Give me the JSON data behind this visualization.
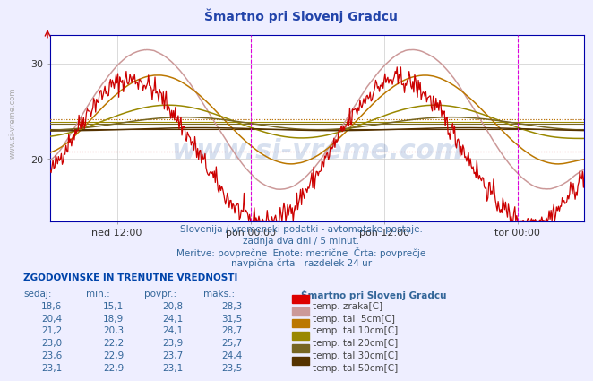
{
  "title": "Šmartno pri Slovenj Gradcu",
  "title_color": "#2244aa",
  "bg_color": "#eeeeff",
  "plot_bg_color": "#ffffff",
  "subtitle_lines": [
    "Slovenija / vremenski podatki - avtomatske postaje.",
    "zadnja dva dni / 5 minut.",
    "Meritve: povprečne  Enote: metrične  Črta: povprečje",
    "navpična črta - razdelek 24 ur"
  ],
  "xtick_labels": [
    "ned 12:00",
    "pon 00:00",
    "pon 12:00",
    "tor 00:00"
  ],
  "xtick_pos": [
    0.125,
    0.375,
    0.625,
    0.875
  ],
  "yticks": [
    20,
    30
  ],
  "ylim_min": 13.5,
  "ylim_max": 33.0,
  "grid_color": "#cccccc",
  "vline_color": "#dd00dd",
  "vline_positions": [
    0.375,
    0.875
  ],
  "series_colors": {
    "temp_zraka": "#cc0000",
    "temp_tal_5cm": "#cc9999",
    "temp_tal_10cm": "#bb7700",
    "temp_tal_20cm": "#998800",
    "temp_tal_30cm": "#776622",
    "temp_tal_50cm": "#553300"
  },
  "avg_line_colors": {
    "temp_zraka": "#cc0000",
    "temp_tal_5cm": "#cc9999",
    "temp_tal_10cm": "#bb7700",
    "temp_tal_20cm": "#998800",
    "temp_tal_30cm": "#776622",
    "temp_tal_50cm": "#553300"
  },
  "avg_values": {
    "temp_zraka": 20.8,
    "temp_tal_5cm": 24.1,
    "temp_tal_10cm": 24.1,
    "temp_tal_20cm": 23.9,
    "temp_tal_30cm": 23.7,
    "temp_tal_50cm": 23.1
  },
  "legend_colors": [
    "#dd0000",
    "#cc9999",
    "#bb7700",
    "#998800",
    "#776622",
    "#553300"
  ],
  "table_header": "ZGODOVINSKE IN TRENUTNE VREDNOSTI",
  "table_cols": [
    "sedaj:",
    "min.:",
    "povpr.:",
    "maks.:"
  ],
  "table_rows": [
    [
      "18,6",
      "15,1",
      "20,8",
      "28,3",
      "temp. zraka[C]"
    ],
    [
      "20,4",
      "18,9",
      "24,1",
      "31,5",
      "temp. tal  5cm[C]"
    ],
    [
      "21,2",
      "20,3",
      "24,1",
      "28,7",
      "temp. tal 10cm[C]"
    ],
    [
      "23,0",
      "22,2",
      "23,9",
      "25,7",
      "temp. tal 20cm[C]"
    ],
    [
      "23,6",
      "22,9",
      "23,7",
      "24,4",
      "temp. tal 30cm[C]"
    ],
    [
      "23,1",
      "22,9",
      "23,1",
      "23,5",
      "temp. tal 50cm[C]"
    ]
  ],
  "station_label": "Šmartno pri Slovenj Gradcu",
  "watermark": "www.si-vreme.com",
  "left_label": "www.si-vreme.com"
}
